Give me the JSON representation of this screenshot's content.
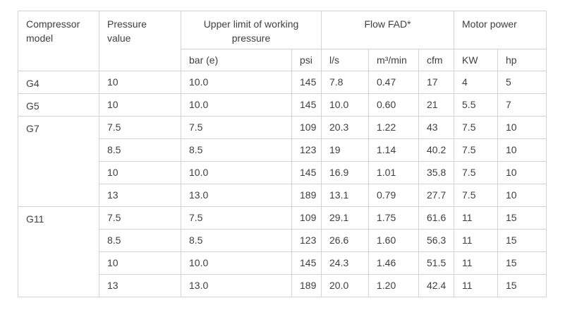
{
  "chart_data": {
    "type": "table",
    "title": "",
    "column_groups": [
      {
        "label": "Compressor model",
        "colspan": 1,
        "rowspan": 2
      },
      {
        "label": "Pressure value",
        "colspan": 1,
        "rowspan": 2
      },
      {
        "label": "Upper limit of working pressure",
        "colspan": 2,
        "rowspan": 1
      },
      {
        "label": "Flow FAD*",
        "colspan": 3,
        "rowspan": 1
      },
      {
        "label": "Motor power",
        "colspan": 2,
        "rowspan": 1
      }
    ],
    "sub_headers": [
      "bar (e)",
      "psi",
      "l/s",
      "m³/min",
      "cfm",
      "KW",
      "hp"
    ],
    "rows": [
      [
        "G4",
        "10",
        "10.0",
        "145",
        "7.8",
        "0.47",
        "17",
        "4",
        "5"
      ],
      [
        "G5",
        "10",
        "10.0",
        "145",
        "10.0",
        "0.60",
        "21",
        "5.5",
        "7"
      ],
      [
        "G7",
        "7.5",
        "7.5",
        "109",
        "20.3",
        "1.22",
        "43",
        "7.5",
        "10"
      ],
      [
        "G7",
        "8.5",
        "8.5",
        "123",
        "19",
        "1.14",
        "40.2",
        "7.5",
        "10"
      ],
      [
        "G7",
        "10",
        "10.0",
        "145",
        "16.9",
        "1.01",
        "35.8",
        "7.5",
        "10"
      ],
      [
        "G7",
        "13",
        "13.0",
        "189",
        "13.1",
        "0.79",
        "27.7",
        "7.5",
        "10"
      ],
      [
        "G11",
        "7.5",
        "7.5",
        "109",
        "29.1",
        "1.75",
        "61.6",
        "11",
        "15"
      ],
      [
        "G11",
        "8.5",
        "8.5",
        "123",
        "26.6",
        "1.60",
        "56.3",
        "11",
        "15"
      ],
      [
        "G11",
        "10",
        "10.0",
        "145",
        "24.3",
        "1.46",
        "51.5",
        "11",
        "15"
      ],
      [
        "G11",
        "13",
        "13.0",
        "189",
        "20.0",
        "1.20",
        "42.4",
        "11",
        "15"
      ]
    ],
    "model_groups": [
      {
        "model": "G4",
        "row_count": 1
      },
      {
        "model": "G5",
        "row_count": 1
      },
      {
        "model": "G7",
        "row_count": 4
      },
      {
        "model": "G11",
        "row_count": 4
      }
    ],
    "layout_hints": {
      "grid": true,
      "merged_model_cells": true,
      "centered_group_headers": [
        "Upper limit of working pressure",
        "Flow FAD*"
      ]
    }
  },
  "colors": {
    "border": "#d3d3d3",
    "text": "#3f3f3f",
    "background": "#ffffff"
  }
}
